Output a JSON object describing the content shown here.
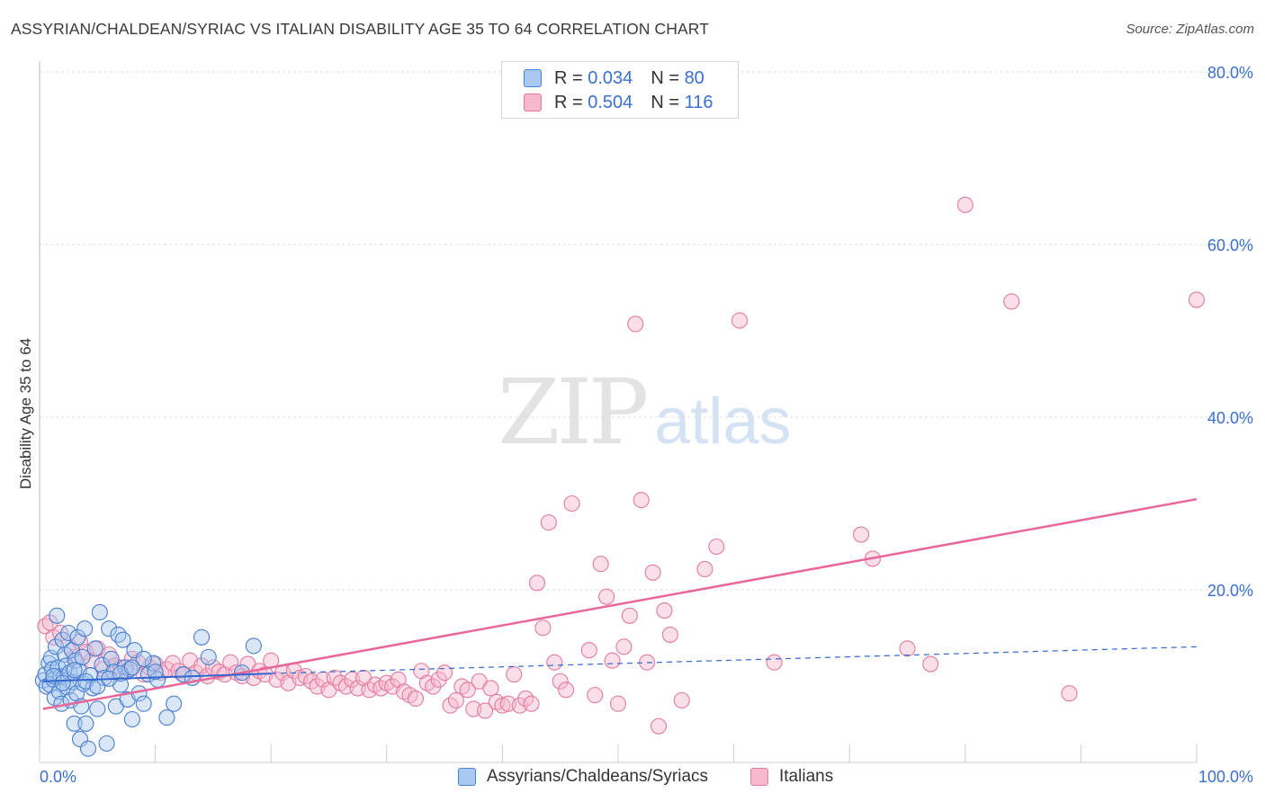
{
  "title": "ASSYRIAN/CHALDEAN/SYRIAC VS ITALIAN DISABILITY AGE 35 TO 64 CORRELATION CHART",
  "source": "Source: ZipAtlas.com",
  "watermark": {
    "zip": "ZIP",
    "atlas": "atlas"
  },
  "legend": {
    "rows": [
      {
        "r_label": "R = ",
        "r_value": "0.034",
        "n_label": "N = ",
        "n_value": "80"
      },
      {
        "r_label": "R = ",
        "r_value": "0.504",
        "n_label": "N = ",
        "n_value": "116"
      }
    ]
  },
  "bottom_legend": {
    "series1": "Assyrians/Chaldeans/Syriacs",
    "series2": "Italians"
  },
  "colors": {
    "blue_fill": "#a9c8f0",
    "blue_stroke": "#4a7fd0",
    "blue_line": "#3366cc",
    "pink_fill": "#f7b8cc",
    "pink_stroke": "#e07ba0",
    "pink_line": "#e8669a",
    "axis_label": "#3b6fcf",
    "grid": "#dddddd"
  },
  "chart_data": {
    "type": "scatter",
    "title": "ASSYRIAN/CHALDEAN/SYRIAC VS ITALIAN DISABILITY AGE 35 TO 64 CORRELATION CHART",
    "xlabel": "",
    "ylabel": "Disability Age 35 to 64",
    "xlim": [
      0,
      100
    ],
    "ylim": [
      0,
      80
    ],
    "x_tick_labels": [
      "0.0%",
      "100.0%"
    ],
    "y_tick_labels": [
      "20.0%",
      "40.0%",
      "60.0%",
      "80.0%"
    ],
    "y_ticks": [
      20,
      40,
      60,
      80
    ],
    "legend_position": "top-center",
    "series": [
      {
        "name": "Assyrians/Chaldeans/Syriacs",
        "r": 0.034,
        "n": 80,
        "trend_solid": [
          [
            0.3,
            9.4
          ],
          [
            20,
            10.3
          ]
        ],
        "trend_dashed": [
          [
            20,
            10.3
          ],
          [
            100,
            13.4
          ]
        ],
        "points": [
          [
            0.3,
            9.5
          ],
          [
            0.5,
            10.2
          ],
          [
            0.6,
            8.8
          ],
          [
            0.8,
            11.5
          ],
          [
            0.9,
            9.0
          ],
          [
            1.0,
            12.1
          ],
          [
            1.1,
            10.8
          ],
          [
            1.2,
            9.6
          ],
          [
            1.3,
            7.5
          ],
          [
            1.4,
            13.4
          ],
          [
            1.5,
            17.0
          ],
          [
            1.6,
            11.0
          ],
          [
            1.7,
            8.2
          ],
          [
            1.8,
            10.0
          ],
          [
            1.9,
            6.8
          ],
          [
            2.0,
            14.2
          ],
          [
            2.1,
            9.9
          ],
          [
            2.2,
            12.5
          ],
          [
            2.3,
            11.2
          ],
          [
            2.4,
            8.7
          ],
          [
            2.5,
            15.0
          ],
          [
            2.6,
            10.4
          ],
          [
            2.7,
            7.2
          ],
          [
            2.8,
            13.0
          ],
          [
            2.9,
            9.3
          ],
          [
            3.0,
            4.5
          ],
          [
            3.1,
            11.8
          ],
          [
            3.2,
            8.0
          ],
          [
            3.3,
            14.5
          ],
          [
            3.4,
            10.6
          ],
          [
            3.5,
            2.7
          ],
          [
            3.6,
            6.5
          ],
          [
            3.7,
            12.2
          ],
          [
            3.8,
            9.1
          ],
          [
            3.9,
            15.5
          ],
          [
            4.0,
            4.5
          ],
          [
            4.2,
            1.6
          ],
          [
            4.4,
            10.1
          ],
          [
            4.6,
            8.6
          ],
          [
            4.8,
            13.2
          ],
          [
            5.0,
            6.2
          ],
          [
            5.2,
            17.4
          ],
          [
            5.4,
            11.3
          ],
          [
            5.6,
            9.8
          ],
          [
            5.8,
            2.2
          ],
          [
            6.0,
            15.5
          ],
          [
            6.2,
            12.0
          ],
          [
            6.4,
            10.5
          ],
          [
            6.6,
            6.5
          ],
          [
            6.8,
            14.8
          ],
          [
            7.0,
            9.0
          ],
          [
            7.2,
            14.2
          ],
          [
            7.4,
            11.0
          ],
          [
            7.6,
            7.3
          ],
          [
            7.8,
            10.8
          ],
          [
            8.0,
            5.0
          ],
          [
            8.2,
            13.0
          ],
          [
            8.6,
            8.0
          ],
          [
            9.0,
            6.8
          ],
          [
            9.4,
            10.2
          ],
          [
            9.8,
            11.5
          ],
          [
            10.2,
            9.6
          ],
          [
            11.0,
            5.2
          ],
          [
            11.6,
            6.8
          ],
          [
            12.4,
            10.2
          ],
          [
            13.2,
            9.8
          ],
          [
            14.0,
            14.5
          ],
          [
            14.6,
            12.2
          ],
          [
            17.5,
            10.4
          ],
          [
            18.5,
            13.5
          ],
          [
            1.2,
            10.0
          ],
          [
            2.0,
            9.2
          ],
          [
            3.0,
            10.7
          ],
          [
            4.0,
            9.4
          ],
          [
            5.0,
            8.8
          ],
          [
            6.0,
            9.7
          ],
          [
            7.0,
            10.3
          ],
          [
            8.0,
            11.0
          ],
          [
            9.0,
            12.0
          ],
          [
            10.0,
            10.5
          ]
        ]
      },
      {
        "name": "Italians",
        "r": 0.504,
        "n": 116,
        "trend": [
          [
            0.3,
            6.2
          ],
          [
            100,
            30.5
          ]
        ],
        "points": [
          [
            0.5,
            15.8
          ],
          [
            1.2,
            14.5
          ],
          [
            1.8,
            15.0
          ],
          [
            2.5,
            13.5
          ],
          [
            3.0,
            12.2
          ],
          [
            3.5,
            14.0
          ],
          [
            4.0,
            12.8
          ],
          [
            4.5,
            11.8
          ],
          [
            5.0,
            13.2
          ],
          [
            5.5,
            10.8
          ],
          [
            6.0,
            12.5
          ],
          [
            6.5,
            11.2
          ],
          [
            7.0,
            11.0
          ],
          [
            7.5,
            10.5
          ],
          [
            8.0,
            12.0
          ],
          [
            8.5,
            11.6
          ],
          [
            9.0,
            10.2
          ],
          [
            9.5,
            11.0
          ],
          [
            10.0,
            11.4
          ],
          [
            10.5,
            10.4
          ],
          [
            11.0,
            10.8
          ],
          [
            11.5,
            11.5
          ],
          [
            12.0,
            10.6
          ],
          [
            12.5,
            10.2
          ],
          [
            13.0,
            11.8
          ],
          [
            13.5,
            10.4
          ],
          [
            14.0,
            11.2
          ],
          [
            14.5,
            10.0
          ],
          [
            15.0,
            11.0
          ],
          [
            15.5,
            10.5
          ],
          [
            16.0,
            10.2
          ],
          [
            16.5,
            11.6
          ],
          [
            17.0,
            10.4
          ],
          [
            17.5,
            10.0
          ],
          [
            18.0,
            11.4
          ],
          [
            18.5,
            9.8
          ],
          [
            19.0,
            10.6
          ],
          [
            19.5,
            10.2
          ],
          [
            20.0,
            11.8
          ],
          [
            20.5,
            9.6
          ],
          [
            21.0,
            10.4
          ],
          [
            21.5,
            9.2
          ],
          [
            22.0,
            10.6
          ],
          [
            22.5,
            9.8
          ],
          [
            23.0,
            10.0
          ],
          [
            23.5,
            9.4
          ],
          [
            24.0,
            8.8
          ],
          [
            24.5,
            9.6
          ],
          [
            25.0,
            8.4
          ],
          [
            25.5,
            9.8
          ],
          [
            26.0,
            9.2
          ],
          [
            26.5,
            8.8
          ],
          [
            27.0,
            9.6
          ],
          [
            27.5,
            8.6
          ],
          [
            28.0,
            9.8
          ],
          [
            28.5,
            8.4
          ],
          [
            29.0,
            9.0
          ],
          [
            29.5,
            8.6
          ],
          [
            30.0,
            9.2
          ],
          [
            30.5,
            8.8
          ],
          [
            31.0,
            9.6
          ],
          [
            31.5,
            8.2
          ],
          [
            32.0,
            7.8
          ],
          [
            32.5,
            7.4
          ],
          [
            33.0,
            10.6
          ],
          [
            33.5,
            9.2
          ],
          [
            34.0,
            8.8
          ],
          [
            34.5,
            9.6
          ],
          [
            35.0,
            10.4
          ],
          [
            35.5,
            6.6
          ],
          [
            36.0,
            7.2
          ],
          [
            36.5,
            8.8
          ],
          [
            37.0,
            8.4
          ],
          [
            37.5,
            6.2
          ],
          [
            38.0,
            9.4
          ],
          [
            38.5,
            6.0
          ],
          [
            39.0,
            8.6
          ],
          [
            39.5,
            7.0
          ],
          [
            40.0,
            6.6
          ],
          [
            40.5,
            6.8
          ],
          [
            41.0,
            10.2
          ],
          [
            41.5,
            6.6
          ],
          [
            42.0,
            7.4
          ],
          [
            42.5,
            6.8
          ],
          [
            43.0,
            20.8
          ],
          [
            43.5,
            15.6
          ],
          [
            44.0,
            27.8
          ],
          [
            44.5,
            11.6
          ],
          [
            45.0,
            9.4
          ],
          [
            45.5,
            8.4
          ],
          [
            46.0,
            30.0
          ],
          [
            47.5,
            13.0
          ],
          [
            48.0,
            7.8
          ],
          [
            48.5,
            23.0
          ],
          [
            49.0,
            19.2
          ],
          [
            49.5,
            11.8
          ],
          [
            50.0,
            6.8
          ],
          [
            50.5,
            13.4
          ],
          [
            51.0,
            17.0
          ],
          [
            51.5,
            50.8
          ],
          [
            52.0,
            30.4
          ],
          [
            52.5,
            11.6
          ],
          [
            53.0,
            22.0
          ],
          [
            54.0,
            17.6
          ],
          [
            54.5,
            14.8
          ],
          [
            53.5,
            4.2
          ],
          [
            55.5,
            7.2
          ],
          [
            57.5,
            22.4
          ],
          [
            58.5,
            25.0
          ],
          [
            60.5,
            51.2
          ],
          [
            63.5,
            11.6
          ],
          [
            71.0,
            26.4
          ],
          [
            72.0,
            23.6
          ],
          [
            75.0,
            13.2
          ],
          [
            77.0,
            11.4
          ],
          [
            80.0,
            64.6
          ],
          [
            84.0,
            53.4
          ],
          [
            89.0,
            8.0
          ],
          [
            100.0,
            53.6
          ],
          [
            0.9,
            16.2
          ]
        ]
      }
    ]
  }
}
